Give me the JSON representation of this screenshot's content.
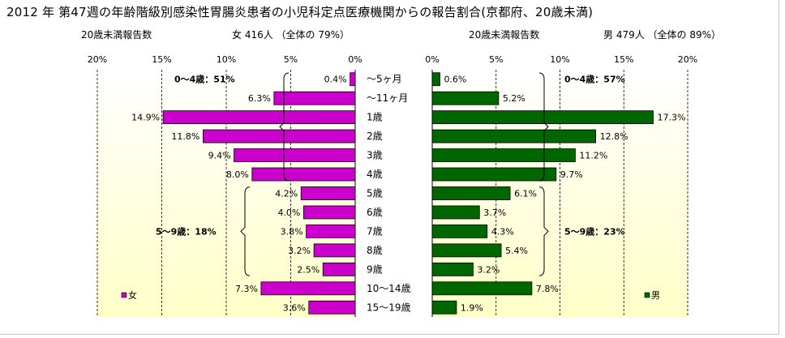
{
  "title": "2012 年 第47週の年齢階級別感染性胃腸炎患者の小児科定点医療機関からの報告割合(京都府、20歳未満)",
  "left_subtitle": {
    "label": "20歳未満報告数",
    "summary": "女  416人 （全体の  79%）"
  },
  "right_subtitle": {
    "label": "20歳未満報告数",
    "summary": "男  479人 （全体の  89%）"
  },
  "colors": {
    "female": "#cc00cc",
    "male": "#006600",
    "plot_bg_top": "#ffffff",
    "plot_bg_bottom": "#ffffc8",
    "grid": "#000000"
  },
  "chart_data": [
    {
      "type": "bar",
      "orientation": "horizontal",
      "direction": "right-to-left",
      "series": [
        {
          "name": "女",
          "values": [
            0.4,
            6.3,
            14.9,
            11.8,
            9.4,
            8.0,
            4.2,
            4.0,
            3.8,
            3.2,
            2.5,
            7.3,
            3.6
          ]
        }
      ],
      "value_labels": [
        "0.4%",
        "6.3%",
        "14.9%",
        "11.8%",
        "9.4%",
        "8.0%",
        "4.2%",
        "4.0%",
        "3.8%",
        "3.2%",
        "2.5%",
        "7.3%",
        "3.6%"
      ],
      "xlim": [
        0,
        20
      ],
      "xticks": [
        "20%",
        "15%",
        "10%",
        "5%",
        "0%"
      ],
      "annotations": [
        {
          "text": "0～4歳：51%",
          "rows": [
            0,
            5
          ]
        },
        {
          "text": "5～9歳：18%",
          "rows": [
            6,
            10
          ]
        }
      ],
      "legend": {
        "label": "女",
        "position": "bottom-left"
      },
      "grid": true
    },
    {
      "type": "bar",
      "orientation": "horizontal",
      "direction": "left-to-right",
      "series": [
        {
          "name": "男",
          "values": [
            0.6,
            5.2,
            17.3,
            12.8,
            11.2,
            9.7,
            6.1,
            3.7,
            4.3,
            5.4,
            3.2,
            7.8,
            1.9
          ]
        }
      ],
      "value_labels": [
        "0.6%",
        "5.2%",
        "17.3%",
        "12.8%",
        "11.2%",
        "9.7%",
        "6.1%",
        "3.7%",
        "4.3%",
        "5.4%",
        "3.2%",
        "7.8%",
        "1.9%"
      ],
      "xlim": [
        0,
        20
      ],
      "xticks": [
        "0%",
        "5%",
        "10%",
        "15%",
        "20%"
      ],
      "annotations": [
        {
          "text": "0～4歳：57%",
          "rows": [
            0,
            5
          ]
        },
        {
          "text": "5～9歳：23%",
          "rows": [
            6,
            10
          ]
        }
      ],
      "legend": {
        "label": "男",
        "position": "bottom-right"
      },
      "grid": true
    }
  ],
  "categories": [
    "～5ヶ月",
    "～11ヶ月",
    "1歳",
    "2歳",
    "3歳",
    "4歳",
    "5歳",
    "6歳",
    "7歳",
    "8歳",
    "9歳",
    "10～14歳",
    "15～19歳"
  ]
}
